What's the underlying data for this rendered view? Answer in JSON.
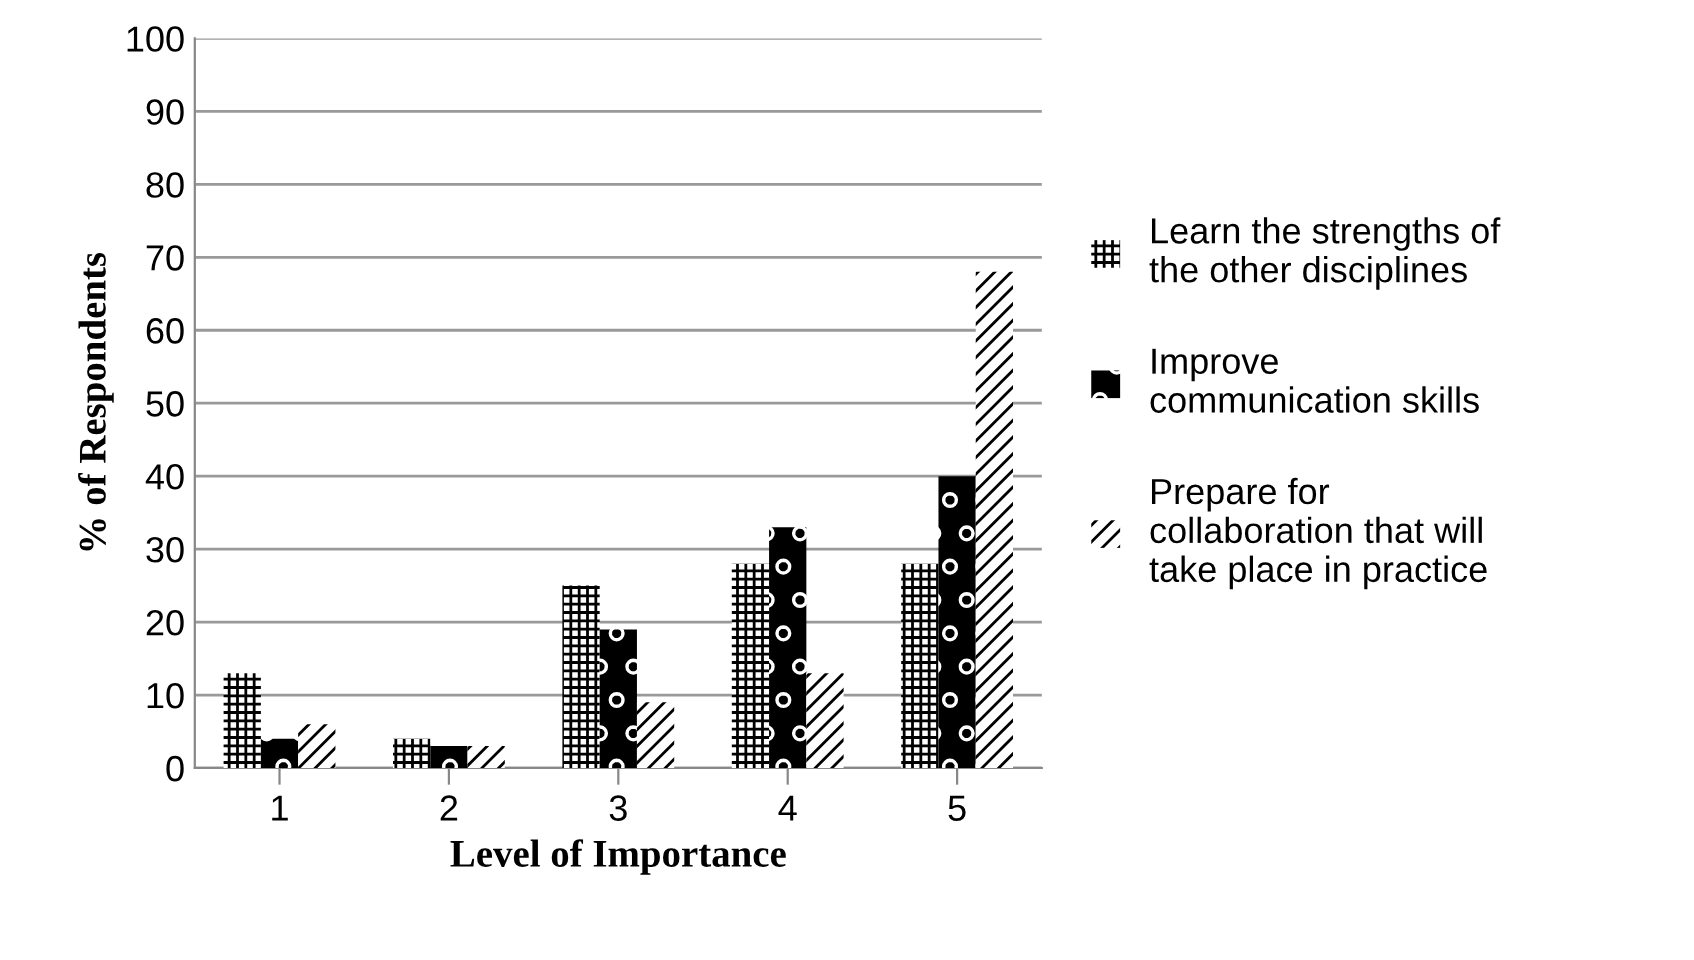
{
  "chart_data": {
    "type": "bar",
    "xlabel": "Level of Importance",
    "ylabel": "% of Respondents",
    "categories": [
      "1",
      "2",
      "3",
      "4",
      "5"
    ],
    "series": [
      {
        "name": "Learn the strengths of\nthe other disciplines",
        "color": "#000000",
        "values": [
          13,
          4,
          25,
          28,
          28
        ]
      },
      {
        "name": "Improve\ncommunication skills",
        "color": "#000000",
        "values": [
          4,
          3,
          19,
          33,
          40
        ]
      },
      {
        "name": "Prepare for\ncollaboration that will\ntake place in practice",
        "color": "#000000",
        "values": [
          6,
          3,
          9,
          13,
          68
        ]
      }
    ],
    "ylim": [
      0,
      100
    ],
    "yticks": [
      0,
      10,
      20,
      30,
      40,
      50,
      60,
      70,
      80,
      90,
      100
    ],
    "grid": "y",
    "legend": "right"
  }
}
